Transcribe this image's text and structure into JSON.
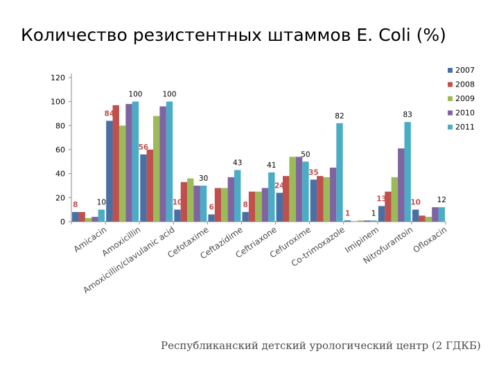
{
  "title": "Количество резистентных штаммов E. Coli (%)",
  "footer": "Республиканский детский урологический центр (2 ГДКБ)",
  "chart_data": {
    "type": "bar",
    "title": "",
    "xlabel": "",
    "ylabel": "",
    "ylim": [
      0,
      120
    ],
    "yticks": [
      0,
      20,
      40,
      60,
      80,
      100,
      120
    ],
    "grid": false,
    "legend_position": "right",
    "categories": [
      "Amicacin",
      "Amoxicillin",
      "Amoxicillin/clavulanic acid",
      "Cefotaxime",
      "Ceftazidime",
      "Ceftriaxone",
      "Cefuroxime",
      "Co-trimoxazole",
      "Imipinem",
      "Nitrofurantoin",
      "Ofloxacin"
    ],
    "series": [
      {
        "name": "2007",
        "color": "#4a6fa5",
        "values": [
          8,
          84,
          56,
          10,
          6,
          8,
          24,
          35,
          1,
          13,
          10
        ]
      },
      {
        "name": "2008",
        "color": "#c0504d",
        "values": [
          8,
          97,
          60,
          33,
          28,
          25,
          38,
          38,
          0,
          25,
          5
        ]
      },
      {
        "name": "2009",
        "color": "#9bbb59",
        "values": [
          3,
          80,
          88,
          36,
          28,
          25,
          54,
          37,
          1,
          37,
          4
        ]
      },
      {
        "name": "2010",
        "color": "#8064a2",
        "values": [
          4,
          98,
          96,
          30,
          37,
          28,
          54,
          45,
          1,
          61,
          12
        ]
      },
      {
        "name": "2011",
        "color": "#4bacc6",
        "values": [
          10,
          100,
          100,
          30,
          43,
          41,
          50,
          82,
          1,
          83,
          12
        ]
      }
    ],
    "data_labels": [
      {
        "category": "Amicacin",
        "series": "2007",
        "text": "8",
        "color": "#c0504d"
      },
      {
        "category": "Amicacin",
        "series": "2011",
        "text": "10",
        "color": "#000000"
      },
      {
        "category": "Amoxicillin",
        "series": "2007",
        "text": "84",
        "color": "#c0504d"
      },
      {
        "category": "Amoxicillin",
        "series": "2011",
        "text": "100",
        "color": "#000000"
      },
      {
        "category": "Amoxicillin/clavulanic acid",
        "series": "2007",
        "text": "56",
        "color": "#c0504d"
      },
      {
        "category": "Amoxicillin/clavulanic acid",
        "series": "2011",
        "text": "100",
        "color": "#000000"
      },
      {
        "category": "Cefotaxime",
        "series": "2007",
        "text": "10",
        "color": "#c0504d"
      },
      {
        "category": "Cefotaxime",
        "series": "2011",
        "text": "30",
        "color": "#000000"
      },
      {
        "category": "Ceftazidime",
        "series": "2007",
        "text": "6",
        "color": "#c0504d"
      },
      {
        "category": "Ceftazidime",
        "series": "2011",
        "text": "43",
        "color": "#000000"
      },
      {
        "category": "Ceftriaxone",
        "series": "2007",
        "text": "8",
        "color": "#c0504d"
      },
      {
        "category": "Ceftriaxone",
        "series": "2011",
        "text": "41",
        "color": "#000000"
      },
      {
        "category": "Cefuroxime",
        "series": "2007",
        "text": "24",
        "color": "#c0504d"
      },
      {
        "category": "Cefuroxime",
        "series": "2011",
        "text": "50",
        "color": "#000000"
      },
      {
        "category": "Co-trimoxazole",
        "series": "2007",
        "text": "35",
        "color": "#c0504d"
      },
      {
        "category": "Co-trimoxazole",
        "series": "2011",
        "text": "82",
        "color": "#000000"
      },
      {
        "category": "Imipinem",
        "series": "2007",
        "text": "1",
        "color": "#c0504d"
      },
      {
        "category": "Imipinem",
        "series": "2011",
        "text": "1",
        "color": "#000000"
      },
      {
        "category": "Nitrofurantoin",
        "series": "2007",
        "text": "13",
        "color": "#c0504d"
      },
      {
        "category": "Nitrofurantoin",
        "series": "2011",
        "text": "83",
        "color": "#000000"
      },
      {
        "category": "Ofloxacin",
        "series": "2007",
        "text": "10",
        "color": "#c0504d"
      },
      {
        "category": "Ofloxacin",
        "series": "2011",
        "text": "12",
        "color": "#000000"
      }
    ]
  }
}
